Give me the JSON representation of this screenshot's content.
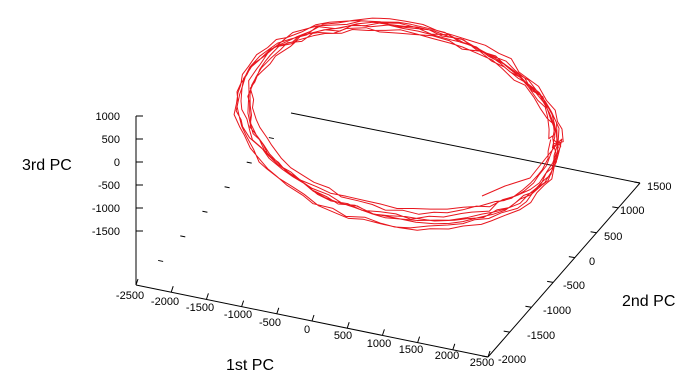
{
  "chart_data": {
    "type": "line",
    "subtype": "3d-parametric",
    "title": "",
    "xlabel": "1st PC",
    "ylabel": "2nd PC",
    "zlabel": "3rd PC",
    "x_ticks": [
      "-2500",
      "-2000",
      "-1500",
      "-1000",
      "-500",
      "0",
      "500",
      "1000",
      "1500",
      "2000",
      "2500"
    ],
    "y_ticks": [
      "-2000",
      "-1500",
      "-1000",
      "-500",
      "0",
      "500",
      "1000",
      "1500"
    ],
    "z_ticks": [
      "1000",
      "500",
      "0",
      "-500",
      "-1000",
      "-1500"
    ],
    "xlim": [
      -2500,
      2500
    ],
    "ylim": [
      -2000,
      1500
    ],
    "zlim": [
      -2000,
      1000
    ],
    "series_color": "#e8161e",
    "loops": 8,
    "trajectory_note": "closed-loop orbit repeated ~8 times, ending near (2000, -700, -700)"
  }
}
